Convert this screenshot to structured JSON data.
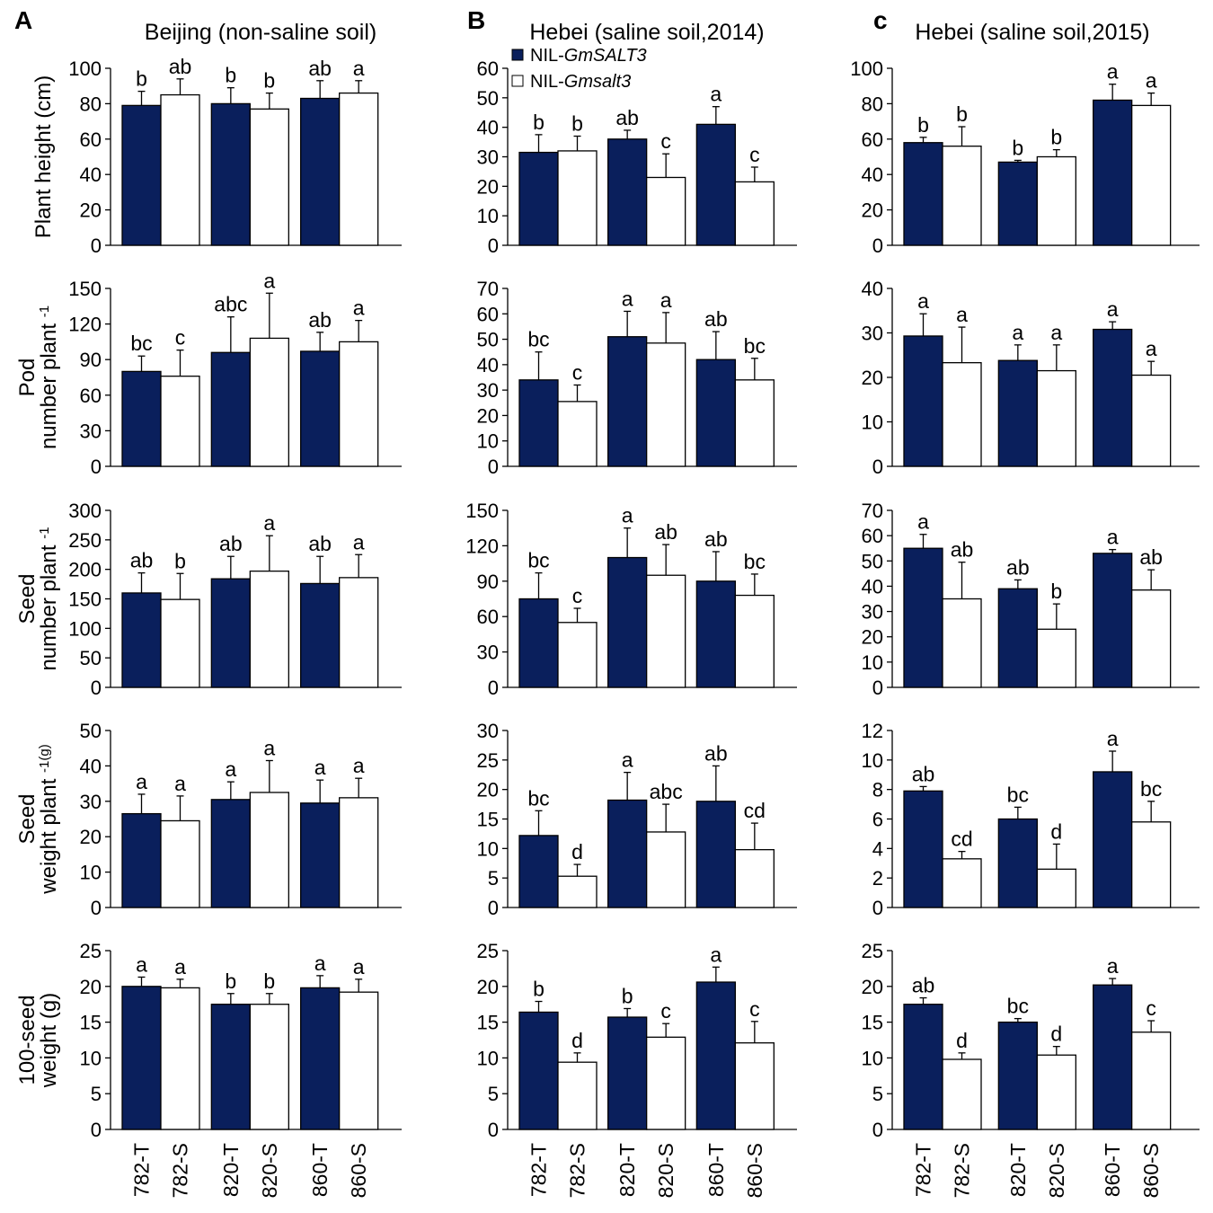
{
  "colors": {
    "transgenic": "#0a1f5c",
    "control": "#ffffff",
    "outline": "#000000"
  },
  "panels": [
    {
      "letter": "A",
      "title": "Beijing (non-saline soil)"
    },
    {
      "letter": "B",
      "title": "Hebei (saline soil,2014)"
    },
    {
      "letter": "c",
      "title": "Hebei (saline soil,2015)"
    }
  ],
  "legend": {
    "items": [
      {
        "prefix": "NIL-",
        "name": "GmSALT3",
        "color": "#0a1f5c"
      },
      {
        "prefix": "NIL-",
        "name": "Gmsalt3",
        "color": "#ffffff"
      }
    ]
  },
  "row_labels": [
    {
      "lines": [
        "Plant height (cm)"
      ]
    },
    {
      "lines": [
        "Pod",
        "number plant ^-1"
      ]
    },
    {
      "lines": [
        "Seed",
        "number plant ^-1"
      ]
    },
    {
      "lines": [
        "Seed",
        "weight plant ^-1(g)"
      ]
    },
    {
      "lines": [
        "100-seed",
        "weight (g)"
      ]
    }
  ],
  "chart_data": {
    "type": "bar",
    "categories": [
      "782-T",
      "782-S",
      "820-T",
      "820-S",
      "860-T",
      "860-S"
    ],
    "series_names": [
      "NIL-GmSALT3",
      "NIL-Gmsalt3"
    ],
    "grid": false,
    "rows": [
      {
        "ylabel": "Plant height (cm)",
        "charts": [
          {
            "panel": "A",
            "ylim": [
              0,
              100
            ],
            "ticks": [
              0,
              20,
              40,
              60,
              80,
              100
            ],
            "values": [
              79,
              85,
              80,
              77,
              83,
              86
            ],
            "errors": [
              8,
              9,
              9,
              9,
              10,
              7
            ],
            "labels": [
              "b",
              "ab",
              "b",
              "b",
              "ab",
              "a"
            ]
          },
          {
            "panel": "B",
            "ylim": [
              0,
              60
            ],
            "ticks": [
              0,
              10,
              20,
              30,
              40,
              50,
              60
            ],
            "values": [
              31.5,
              32,
              36,
              23,
              41,
              21.5
            ],
            "errors": [
              6,
              5,
              3,
              8,
              6,
              5
            ],
            "labels": [
              "b",
              "b",
              "ab",
              "c",
              "a",
              "c"
            ]
          },
          {
            "panel": "c",
            "ylim": [
              0,
              100
            ],
            "ticks": [
              0,
              20,
              40,
              60,
              80,
              100
            ],
            "values": [
              58,
              56,
              47,
              50,
              82,
              79
            ],
            "errors": [
              3,
              11,
              1,
              4,
              9,
              7
            ],
            "labels": [
              "b",
              "b",
              "b",
              "b",
              "a",
              "a"
            ]
          }
        ]
      },
      {
        "ylabel": "Pod number plant -1",
        "charts": [
          {
            "panel": "A",
            "ylim": [
              0,
              150
            ],
            "ticks": [
              0,
              30,
              60,
              90,
              120,
              150
            ],
            "values": [
              80,
              76,
              96,
              108,
              97,
              105
            ],
            "errors": [
              13,
              22,
              30,
              38,
              16,
              18
            ],
            "labels": [
              "bc",
              "c",
              "abc",
              "a",
              "ab",
              "a"
            ]
          },
          {
            "panel": "B",
            "ylim": [
              0,
              70
            ],
            "ticks": [
              0,
              10,
              20,
              30,
              40,
              50,
              60,
              70
            ],
            "values": [
              34,
              25.5,
              51,
              48.5,
              42,
              34
            ],
            "errors": [
              11,
              6.5,
              10,
              12,
              11,
              8.5
            ],
            "labels": [
              "bc",
              "c",
              "a",
              "a",
              "ab",
              "bc"
            ]
          },
          {
            "panel": "c",
            "ylim": [
              0,
              40
            ],
            "ticks": [
              0,
              10,
              20,
              30,
              40
            ],
            "values": [
              29.3,
              23.3,
              23.8,
              21.5,
              30.8,
              20.5
            ],
            "errors": [
              5,
              8,
              3.5,
              5.8,
              1.7,
              3.1
            ],
            "labels": [
              "a",
              "a",
              "a",
              "a",
              "a",
              "a"
            ]
          }
        ]
      },
      {
        "ylabel": "Seed number plant -1",
        "charts": [
          {
            "panel": "A",
            "ylim": [
              0,
              300
            ],
            "ticks": [
              0,
              50,
              100,
              150,
              200,
              250,
              300
            ],
            "values": [
              160,
              149,
              184,
              197,
              176,
              186
            ],
            "errors": [
              34,
              44,
              38,
              60,
              46,
              39
            ],
            "labels": [
              "ab",
              "b",
              "ab",
              "a",
              "ab",
              "a"
            ]
          },
          {
            "panel": "B",
            "ylim": [
              0,
              150
            ],
            "ticks": [
              0,
              30,
              60,
              90,
              120,
              150
            ],
            "values": [
              75,
              55,
              110,
              95,
              90,
              78
            ],
            "errors": [
              22,
              12,
              25,
              26,
              25,
              18
            ],
            "labels": [
              "bc",
              "c",
              "a",
              "ab",
              "ab",
              "bc"
            ]
          },
          {
            "panel": "c",
            "ylim": [
              0,
              70
            ],
            "ticks": [
              0,
              10,
              20,
              30,
              40,
              50,
              60,
              70
            ],
            "values": [
              55,
              35,
              39,
              23,
              53,
              38.5
            ],
            "errors": [
              5.5,
              14.5,
              3.5,
              10,
              1.5,
              8
            ],
            "labels": [
              "a",
              "ab",
              "ab",
              "b",
              "a",
              "ab"
            ]
          }
        ]
      },
      {
        "ylabel": "Seed weight plant -1(g)",
        "charts": [
          {
            "panel": "A",
            "ylim": [
              0,
              50
            ],
            "ticks": [
              0,
              10,
              20,
              30,
              40,
              50
            ],
            "values": [
              26.5,
              24.5,
              30.5,
              32.5,
              29.5,
              31
            ],
            "errors": [
              5.5,
              7,
              5,
              9,
              6.5,
              5.5
            ],
            "labels": [
              "a",
              "a",
              "a",
              "a",
              "a",
              "a"
            ]
          },
          {
            "panel": "B",
            "ylim": [
              0,
              30
            ],
            "ticks": [
              0,
              5,
              10,
              15,
              20,
              25,
              30
            ],
            "values": [
              12.2,
              5.3,
              18.2,
              12.8,
              18,
              9.8
            ],
            "errors": [
              4.2,
              2,
              4.7,
              4.7,
              6,
              4.5
            ],
            "labels": [
              "bc",
              "d",
              "a",
              "abc",
              "ab",
              "cd"
            ]
          },
          {
            "panel": "c",
            "ylim": [
              0,
              12
            ],
            "ticks": [
              0,
              2,
              4,
              6,
              8,
              10,
              12
            ],
            "values": [
              7.9,
              3.3,
              6,
              2.6,
              9.2,
              5.8
            ],
            "errors": [
              0.3,
              0.5,
              0.8,
              1.7,
              1.4,
              1.4
            ],
            "labels": [
              "ab",
              "cd",
              "bc",
              "d",
              "a",
              "bc"
            ]
          }
        ]
      },
      {
        "ylabel": "100-seed weight (g)",
        "charts": [
          {
            "panel": "A",
            "ylim": [
              0,
              25
            ],
            "ticks": [
              0,
              5,
              10,
              15,
              20,
              25
            ],
            "values": [
              20,
              19.8,
              17.5,
              17.5,
              19.8,
              19.2
            ],
            "errors": [
              1.3,
              1.2,
              1.5,
              1.5,
              1.7,
              1.8
            ],
            "labels": [
              "a",
              "a",
              "b",
              "b",
              "a",
              "a"
            ]
          },
          {
            "panel": "B",
            "ylim": [
              0,
              25
            ],
            "ticks": [
              0,
              5,
              10,
              15,
              20,
              25
            ],
            "values": [
              16.4,
              9.4,
              15.7,
              12.9,
              20.6,
              12.1
            ],
            "errors": [
              1.5,
              1.3,
              1.2,
              1.9,
              2.1,
              3
            ],
            "labels": [
              "b",
              "d",
              "b",
              "c",
              "a",
              "c"
            ]
          },
          {
            "panel": "c",
            "ylim": [
              0,
              25
            ],
            "ticks": [
              0,
              5,
              10,
              15,
              20,
              25
            ],
            "values": [
              17.5,
              9.8,
              15,
              10.4,
              20.2,
              13.6
            ],
            "errors": [
              0.9,
              0.9,
              0.5,
              1.2,
              0.9,
              1.6
            ],
            "labels": [
              "ab",
              "d",
              "bc",
              "d",
              "a",
              "c"
            ]
          }
        ]
      }
    ]
  }
}
